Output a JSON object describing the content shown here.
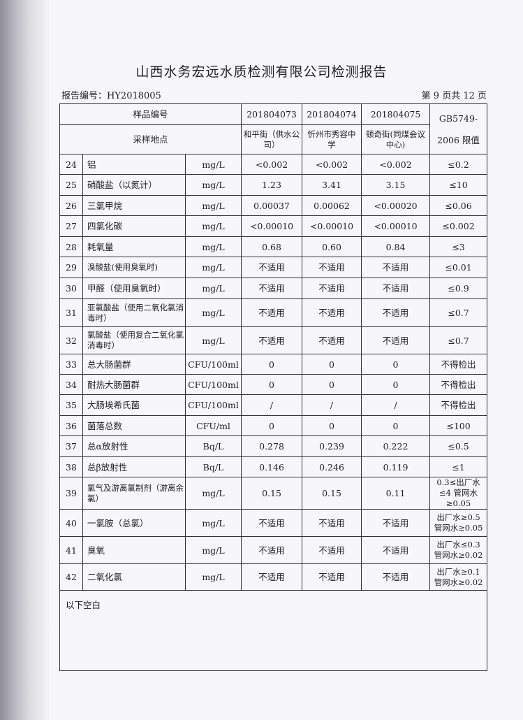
{
  "title": "山西水务宏远水质检测有限公司检测报告",
  "report_no": "报告编号：HY2018005",
  "page": "第 9 页共 12 页",
  "header": {
    "sample_no_label": "样品编号",
    "location_label": "采样地点",
    "samples": [
      "201804073",
      "201804074",
      "201804075"
    ],
    "locations": [
      "和平街（供水公司）",
      "忻州市秀容中学",
      "顿奇街(同煤会议中心)"
    ],
    "limit_label_1": "GB5749-",
    "limit_label_2": "2006 限值"
  },
  "rows": [
    {
      "no": "24",
      "item": "铝",
      "unit": "mg/L",
      "v": [
        "<0.002",
        "<0.002",
        "<0.002"
      ],
      "limit": "≤0.2"
    },
    {
      "no": "25",
      "item": "硝酸盐（以氮计）",
      "unit": "mg/L",
      "v": [
        "1.23",
        "3.41",
        "3.15"
      ],
      "limit": "≤10"
    },
    {
      "no": "26",
      "item": "三氯甲烷",
      "unit": "mg/L",
      "v": [
        "0.00037",
        "0.00062",
        "<0.00020"
      ],
      "limit": "≤0.06"
    },
    {
      "no": "27",
      "item": "四氯化碳",
      "unit": "mg/L",
      "v": [
        "<0.00010",
        "<0.00010",
        "<0.00010"
      ],
      "limit": "≤0.002"
    },
    {
      "no": "28",
      "item": "耗氧量",
      "unit": "mg/L",
      "v": [
        "0.68",
        "0.60",
        "0.84"
      ],
      "limit": "≤3"
    },
    {
      "no": "29",
      "item": "溴酸盐(使用臭氧时)",
      "unit": "mg/L",
      "v": [
        "不适用",
        "不适用",
        "不适用"
      ],
      "limit": "≤0.01"
    },
    {
      "no": "30",
      "item": "甲醛（使用臭氧时）",
      "unit": "mg/L",
      "v": [
        "不适用",
        "不适用",
        "不适用"
      ],
      "limit": "≤0.9"
    },
    {
      "no": "31",
      "item": "亚氯酸盐（使用二氧化氯消毒时）",
      "unit": "mg/L",
      "v": [
        "不适用",
        "不适用",
        "不适用"
      ],
      "limit": "≤0.7"
    },
    {
      "no": "32",
      "item": "氯酸盐（使用复合二氧化氯消毒时）",
      "unit": "mg/L",
      "v": [
        "不适用",
        "不适用",
        "不适用"
      ],
      "limit": "≤0.7"
    },
    {
      "no": "33",
      "item": "总大肠菌群",
      "unit": "CFU/100ml",
      "v": [
        "0",
        "0",
        "0"
      ],
      "limit": "不得检出"
    },
    {
      "no": "34",
      "item": "耐热大肠菌群",
      "unit": "CFU/100ml",
      "v": [
        "0",
        "0",
        "0"
      ],
      "limit": "不得检出"
    },
    {
      "no": "35",
      "item": "大肠埃希氏菌",
      "unit": "CFU/100ml",
      "v": [
        "/",
        "/",
        "/"
      ],
      "limit": "不得检出"
    },
    {
      "no": "36",
      "item": "菌落总数",
      "unit": "CFU/ml",
      "v": [
        "0",
        "0",
        "0"
      ],
      "limit": "≤100"
    },
    {
      "no": "37",
      "item": "总α放射性",
      "unit": "Bq/L",
      "v": [
        "0.278",
        "0.239",
        "0.222"
      ],
      "limit": "≤0.5"
    },
    {
      "no": "38",
      "item": "总β放射性",
      "unit": "Bq/L",
      "v": [
        "0.146",
        "0.246",
        "0.119"
      ],
      "limit": "≤1"
    },
    {
      "no": "39",
      "item": "氯气及游离氯制剂（游离余氯）",
      "unit": "mg/L",
      "v": [
        "0.15",
        "0.15",
        "0.11"
      ],
      "limit": "0.3≤出厂水≤4 管网水≥0.05"
    },
    {
      "no": "40",
      "item": "一氯胺（总氯）",
      "unit": "mg/L",
      "v": [
        "不适用",
        "不适用",
        "不适用"
      ],
      "limit": "出厂水≥0.5 管网水≥0.05"
    },
    {
      "no": "41",
      "item": "臭氧",
      "unit": "mg/L",
      "v": [
        "不适用",
        "不适用",
        "不适用"
      ],
      "limit": "出厂水≤0.3 管网水≥0.02"
    },
    {
      "no": "42",
      "item": "二氧化氯",
      "unit": "mg/L",
      "v": [
        "不适用",
        "不适用",
        "不适用"
      ],
      "limit": "出厂水≥0.1 管网水≥0.02"
    }
  ],
  "footer": "以下空白"
}
